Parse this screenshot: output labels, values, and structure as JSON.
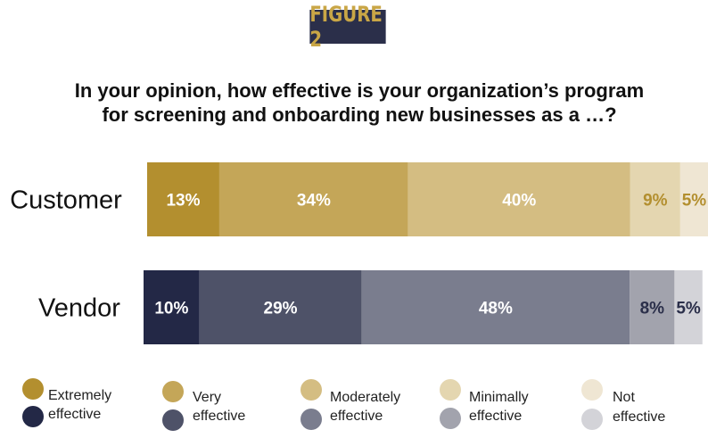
{
  "figure_badge": "FIGURE 2",
  "title_lines": [
    "In your opinion, how effective is your organization’s program",
    "for screening and onboarding new businesses as a …?"
  ],
  "colors": {
    "badge_bg": "#2b2f4a",
    "badge_text": "#c9a646",
    "customer": [
      "#b38f2f",
      "#c4a658",
      "#d4bd82",
      "#e4d6b0",
      "#efe6d3"
    ],
    "vendor": [
      "#232846",
      "#4e5268",
      "#7a7d8e",
      "#a2a3ad",
      "#d3d3d8"
    ],
    "label_dark_customer": "#b38f2f",
    "label_dark_vendor": "#2b2f4a"
  },
  "chart_data": {
    "type": "bar",
    "orientation": "horizontal",
    "stacked": true,
    "categories": [
      "Customer",
      "Vendor"
    ],
    "series": [
      {
        "name": "Extremely effective",
        "values": [
          13,
          10
        ]
      },
      {
        "name": "Very effective",
        "values": [
          34,
          29
        ]
      },
      {
        "name": "Moderately effective",
        "values": [
          40,
          48
        ]
      },
      {
        "name": "Minimally effective",
        "values": [
          9,
          8
        ]
      },
      {
        "name": "Not effective",
        "values": [
          5,
          5
        ]
      }
    ],
    "value_suffix": "%",
    "xlim": [
      0,
      101
    ],
    "title": "In your opinion, how effective is your organization’s program for screening and onboarding new businesses as a …?"
  },
  "legend": [
    {
      "customer_color": "#b38f2f",
      "vendor_color": "#232846",
      "lines": [
        "Extremely",
        "effective"
      ]
    },
    {
      "customer_color": "#c4a658",
      "vendor_color": "#4e5268",
      "lines": [
        "Very",
        "effective"
      ]
    },
    {
      "customer_color": "#d4bd82",
      "vendor_color": "#7a7d8e",
      "lines": [
        "Moderately",
        "effective"
      ]
    },
    {
      "customer_color": "#e4d6b0",
      "vendor_color": "#a2a3ad",
      "lines": [
        "Minimally",
        "effective"
      ]
    },
    {
      "customer_color": "#efe6d3",
      "vendor_color": "#d3d3d8",
      "lines": [
        "Not",
        "effective"
      ]
    }
  ]
}
